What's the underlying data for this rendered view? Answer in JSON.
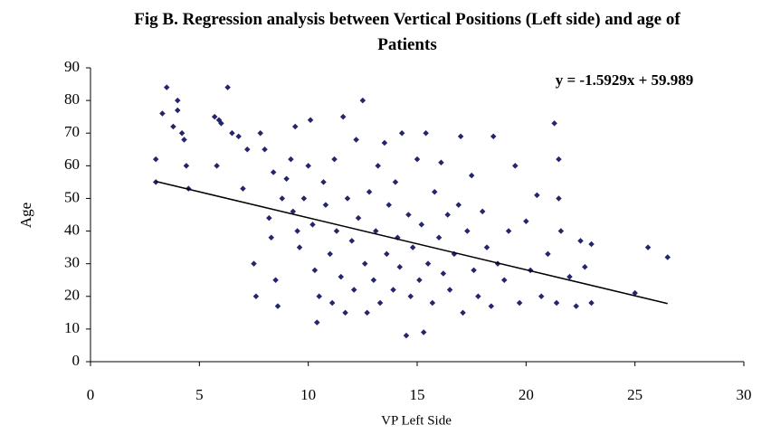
{
  "chart_data": {
    "type": "scatter",
    "title": "Fig B. Regression analysis between Vertical Positions (Left side) and age of Patients",
    "equation": "y = -1.5929x + 59.989",
    "xlabel": "VP Left Side",
    "ylabel": "Age",
    "color": "#25256e",
    "x": [
      3,
      3.3,
      3.5,
      3.8,
      4,
      4,
      4.2,
      4.3,
      4.4,
      3,
      4.5,
      5.7,
      5.9,
      5.8,
      6.3,
      6.5,
      6,
      6.8,
      7,
      7.2,
      7.5,
      7.6,
      7.8,
      8,
      8.2,
      8.3,
      8.4,
      8.5,
      8.6,
      8.8,
      9,
      9.2,
      9.3,
      9.4,
      9.5,
      9.6,
      9.8,
      10,
      10.1,
      10.2,
      10.3,
      10.4,
      10.5,
      10.7,
      10.8,
      11,
      11.1,
      11.2,
      11.3,
      11.5,
      11.6,
      11.7,
      11.8,
      12,
      12.1,
      12.2,
      12.3,
      12.5,
      12.6,
      12.7,
      12.8,
      13,
      13.1,
      13.2,
      13.3,
      13.5,
      13.6,
      13.7,
      13.9,
      14,
      14.1,
      14.2,
      14.3,
      14.5,
      14.6,
      14.7,
      14.8,
      15,
      15.1,
      15.2,
      15.3,
      15.4,
      15.5,
      15.7,
      15.8,
      16,
      16.1,
      16.2,
      16.4,
      16.5,
      16.7,
      16.9,
      17,
      17.1,
      17.3,
      17.5,
      17.6,
      17.8,
      18,
      18.2,
      18.4,
      18.5,
      18.7,
      19,
      19.2,
      19.5,
      19.7,
      20,
      20.2,
      20.5,
      20.7,
      21,
      21.3,
      21.4,
      21.5,
      21.5,
      21.6,
      22,
      22.3,
      22.5,
      22.7,
      23,
      23,
      25,
      25.6,
      26.5
    ],
    "values": [
      62,
      76,
      84,
      72,
      80,
      77,
      70,
      68,
      60,
      55,
      53,
      75,
      74,
      60,
      84,
      70,
      73,
      69,
      53,
      65,
      30,
      20,
      70,
      65,
      44,
      38,
      58,
      25,
      17,
      50,
      56,
      62,
      46,
      72,
      40,
      35,
      50,
      60,
      74,
      42,
      28,
      12,
      20,
      55,
      48,
      33,
      18,
      62,
      40,
      26,
      75,
      15,
      50,
      37,
      22,
      68,
      44,
      80,
      30,
      15,
      52,
      25,
      40,
      60,
      18,
      67,
      33,
      48,
      22,
      55,
      38,
      29,
      70,
      8,
      45,
      20,
      35,
      62,
      25,
      42,
      9,
      70,
      30,
      18,
      52,
      38,
      61,
      27,
      45,
      22,
      33,
      48,
      69,
      15,
      40,
      57,
      28,
      20,
      46,
      35,
      17,
      69,
      30,
      25,
      40,
      60,
      18,
      43,
      28,
      51,
      20,
      33,
      73,
      18,
      62,
      50,
      40,
      26,
      17,
      37,
      29,
      36,
      18,
      21,
      35,
      32
    ],
    "trendline": {
      "x": [
        3,
        26.5
      ],
      "values": [
        55.2,
        17.8
      ],
      "color": "#000000"
    },
    "xlim": [
      0,
      30
    ],
    "xticks": [
      0,
      5,
      10,
      15,
      20,
      25,
      30
    ],
    "ylim": [
      0,
      90
    ],
    "yticks": [
      0,
      10,
      20,
      30,
      40,
      50,
      60,
      70,
      80,
      90
    ]
  }
}
